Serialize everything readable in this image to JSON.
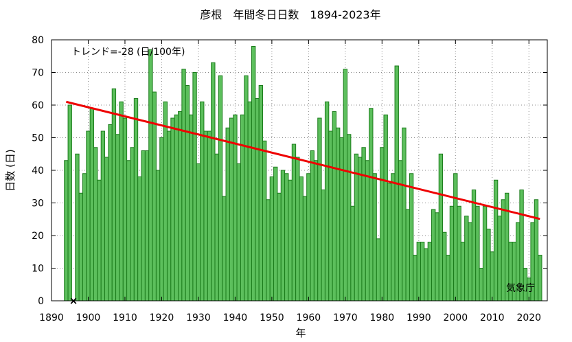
{
  "chart_data": {
    "type": "bar",
    "title": "彦根　年間冬日日数　1894-2023年",
    "xlabel": "年",
    "ylabel": "日数 (日)",
    "xlim": [
      1890,
      2025
    ],
    "ylim": [
      0,
      80
    ],
    "xticks": [
      1890,
      1900,
      1910,
      1920,
      1930,
      1940,
      1950,
      1960,
      1970,
      1980,
      1990,
      2000,
      2010,
      2020
    ],
    "yticks": [
      0,
      10,
      20,
      30,
      40,
      50,
      60,
      70,
      80
    ],
    "grid": true,
    "bar_color": "#5cbf5c",
    "bar_edge_color": "#1a7a1a",
    "trend_color": "#ee0000",
    "annotation": "トレンド=-28 (日/100年)",
    "credit": "気象庁",
    "missing_marker": "×",
    "missing_years": [
      1896
    ],
    "trend": {
      "x": [
        1894,
        2023
      ],
      "y": [
        61.0,
        25.1
      ]
    },
    "x": [
      1894,
      1895,
      1896,
      1897,
      1898,
      1899,
      1900,
      1901,
      1902,
      1903,
      1904,
      1905,
      1906,
      1907,
      1908,
      1909,
      1910,
      1911,
      1912,
      1913,
      1914,
      1915,
      1916,
      1917,
      1918,
      1919,
      1920,
      1921,
      1922,
      1923,
      1924,
      1925,
      1926,
      1927,
      1928,
      1929,
      1930,
      1931,
      1932,
      1933,
      1934,
      1935,
      1936,
      1937,
      1938,
      1939,
      1940,
      1941,
      1942,
      1943,
      1944,
      1945,
      1946,
      1947,
      1948,
      1949,
      1950,
      1951,
      1952,
      1953,
      1954,
      1955,
      1956,
      1957,
      1958,
      1959,
      1960,
      1961,
      1962,
      1963,
      1964,
      1965,
      1966,
      1967,
      1968,
      1969,
      1970,
      1971,
      1972,
      1973,
      1974,
      1975,
      1976,
      1977,
      1978,
      1979,
      1980,
      1981,
      1982,
      1983,
      1984,
      1985,
      1986,
      1987,
      1988,
      1989,
      1990,
      1991,
      1992,
      1993,
      1994,
      1995,
      1996,
      1997,
      1998,
      1999,
      2000,
      2001,
      2002,
      2003,
      2004,
      2005,
      2006,
      2007,
      2008,
      2009,
      2010,
      2011,
      2012,
      2013,
      2014,
      2015,
      2016,
      2017,
      2018,
      2019,
      2020,
      2021,
      2022,
      2023
    ],
    "values": [
      43,
      60,
      null,
      45,
      33,
      39,
      52,
      59,
      47,
      37,
      52,
      44,
      54,
      65,
      51,
      61,
      56,
      43,
      47,
      62,
      38,
      46,
      46,
      77,
      64,
      40,
      50,
      61,
      52,
      56,
      57,
      58,
      71,
      66,
      57,
      70,
      42,
      61,
      52,
      52,
      73,
      45,
      69,
      32,
      53,
      56,
      57,
      42,
      57,
      69,
      61,
      78,
      62,
      66,
      49,
      31,
      38,
      41,
      33,
      40,
      39,
      37,
      48,
      44,
      38,
      32,
      39,
      46,
      43,
      56,
      34,
      61,
      52,
      58,
      53,
      50,
      71,
      51,
      29,
      45,
      44,
      47,
      43,
      59,
      39,
      19,
      47,
      57,
      36,
      39,
      72,
      43,
      53,
      28,
      39,
      14,
      18,
      18,
      16,
      18,
      28,
      27,
      45,
      21,
      14,
      29,
      39,
      29,
      18,
      26,
      24,
      34,
      29,
      10,
      29,
      22,
      15,
      37,
      26,
      31,
      33,
      18,
      18,
      24,
      34,
      10,
      7,
      24,
      31,
      14
    ]
  }
}
